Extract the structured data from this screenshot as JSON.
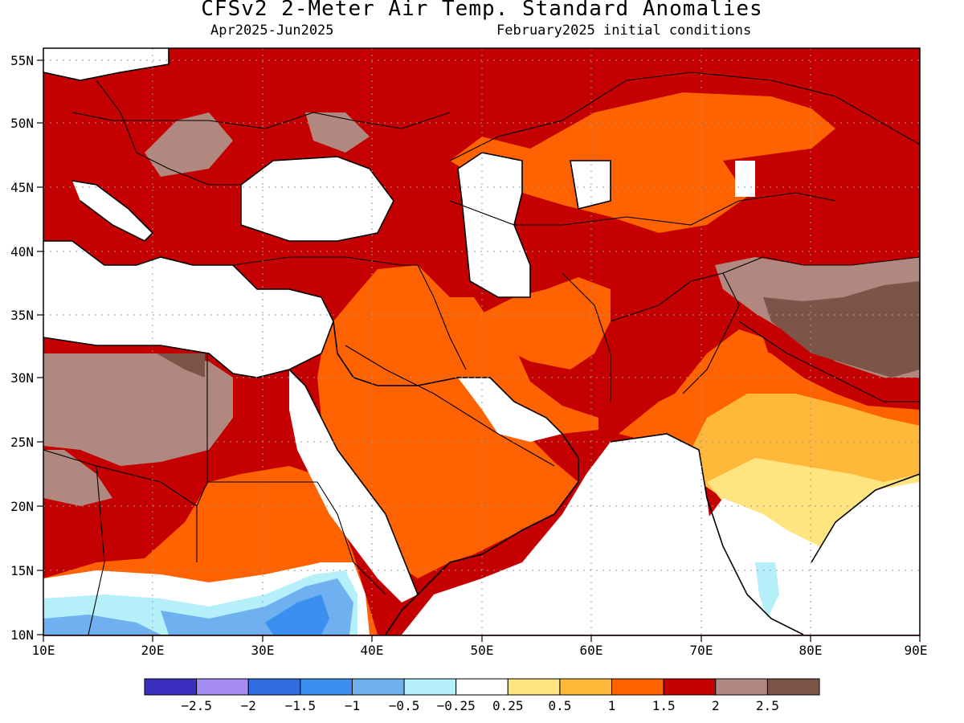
{
  "header": {
    "title": "CFSv2 2-Meter Air Temp. Standard Anomalies",
    "period": "Apr2025-Jun2025",
    "init": "February2025 initial conditions"
  },
  "chart_data": {
    "type": "heatmap",
    "title": "CFSv2 2-Meter Air Temp. Standard Anomalies",
    "lon_range": [
      10,
      90
    ],
    "lat_range": [
      10,
      56
    ],
    "x_ticks": [
      "10E",
      "20E",
      "30E",
      "40E",
      "50E",
      "60E",
      "70E",
      "80E",
      "90E"
    ],
    "y_ticks": [
      "10N",
      "15N",
      "20N",
      "25N",
      "30N",
      "35N",
      "40N",
      "45N",
      "50N",
      "55N"
    ],
    "grid": true,
    "legend": {
      "placement": "bottom",
      "labels": [
        "-2.5",
        "-2",
        "-1.5",
        "-1",
        "-0.5",
        "-0.25",
        "0.25",
        "0.5",
        "1",
        "1.5",
        "2",
        "2.5"
      ],
      "colors": [
        "#3a2fbf",
        "#a58cf5",
        "#2f6de0",
        "#3b8ff0",
        "#6eb0f0",
        "#b4effa",
        "#ffffff",
        "#ffe480",
        "#ffb83a",
        "#ff6200",
        "#c40000",
        "#b08880",
        "#7d5448"
      ]
    },
    "regions": [
      {
        "class": ">2.5",
        "color": "#7d5448",
        "area": "Tibet / northern Himalaya"
      },
      {
        "class": "2 to 2.5",
        "color": "#b08880",
        "area": "Libya, Tibet fringe, Balkans, Ukraine"
      },
      {
        "class": "1.5 to 2",
        "color": "#c40000",
        "area": "Europe, Turkey, Iran, Central Asia, Sahel"
      },
      {
        "class": "1 to 1.5",
        "color": "#ff6200",
        "area": "Arabia, Kazakhstan, Sudan, Pakistan"
      },
      {
        "class": "0.5 to 1",
        "color": "#ffb83a",
        "area": "central India"
      },
      {
        "class": "0.25 to 0.5",
        "color": "#ffe480",
        "area": "southern India"
      },
      {
        "class": "-0.5 to -0.25",
        "color": "#b4effa",
        "area": "Ethiopia, West Africa Sahel"
      },
      {
        "class": "-1 to -0.5",
        "color": "#6eb0f0",
        "area": "Ethiopian highlands"
      }
    ]
  }
}
